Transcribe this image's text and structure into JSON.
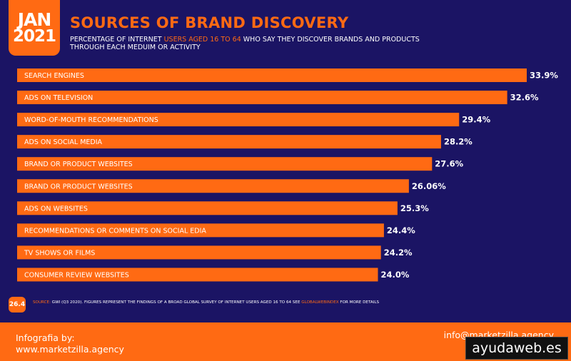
{
  "header": {
    "month": "JAN",
    "year": "2021",
    "title": "SOURCES OF BRAND DISCOVERY",
    "subtitle_before": "PERCENTAGE OF INTERNET ",
    "subtitle_highlight": "USERS AGED 16 TO 64",
    "subtitle_after": " WHO SAY THEY DISCOVER BRANDS AND PRODUCTS THROUGH EACH MEDUIM OR ACTIVITY"
  },
  "colors": {
    "background": "#1b1464",
    "accent": "#ff6a13",
    "text": "#ffffff"
  },
  "chart_data": {
    "type": "bar",
    "orientation": "horizontal",
    "categories": [
      "SEARCH ENGINES",
      "ADS ON TELEVISION",
      "WORD-OF-MOUTH RECOMMENDATIONS",
      "ADS ON SOCIAL MEDIA",
      "BRAND OR PRODUCT WEBSITES",
      "BRAND OR PRODUCT WEBSITES",
      "ADS ON WEBSITES",
      "RECOMMENDATIONS OR COMMENTS ON SOCIAL EDIA",
      "TV SHOWS OR FILMS",
      "CONSUMER REVIEW WEBSITES"
    ],
    "values": [
      33.9,
      32.6,
      29.4,
      28.2,
      27.6,
      26.06,
      25.3,
      24.4,
      24.2,
      24.0
    ],
    "value_labels": [
      "33.9%",
      "32.6%",
      "29.4%",
      "28.2%",
      "27.6%",
      "26.06%",
      "25.3%",
      "24.4%",
      "24.2%",
      "24.0%"
    ],
    "xlim": [
      0,
      33.9
    ],
    "grid": false,
    "legend": "none"
  },
  "page_number": "26.4",
  "source": {
    "label": "SOURCE:",
    "text_before": " GWI (Q3 2020). FIGURES REPRESENT THE FINDINGS OF A BROAD GLOBAL SURVEY OF INTERNET USERS AGED 16 TO 64 SEE ",
    "link": "GLOBALWEBINDEX",
    "text_after": " FOR MORE DETAILS"
  },
  "footer": {
    "credit_line1": "Infografia by:",
    "credit_line2": "www.marketzilla.agency",
    "contact": "info@marketzilla.agency",
    "watermark": "ayudaweb.es"
  }
}
